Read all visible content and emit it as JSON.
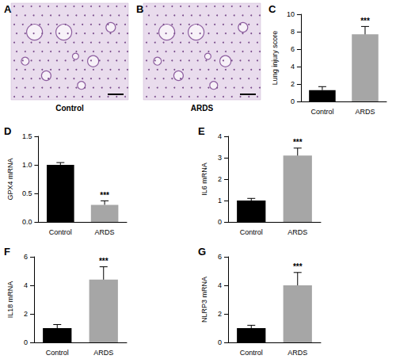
{
  "chart_data": [
    {
      "type": "image",
      "title": "A",
      "xlabel": "Control"
    },
    {
      "type": "image",
      "title": "B",
      "xlabel": "ARDS"
    },
    {
      "type": "bar",
      "title": "C",
      "ylabel": "Lung injury score",
      "categories": [
        "Control",
        "ARDS"
      ],
      "values": [
        1.3,
        7.7
      ],
      "errors": [
        0.4,
        0.9
      ],
      "colors": [
        "#000000",
        "#a6a6a6"
      ],
      "ylim": [
        0,
        10
      ],
      "yticks": [
        0,
        2,
        4,
        6,
        8,
        10
      ],
      "annotation": "***",
      "grid": false
    },
    {
      "type": "bar",
      "title": "D",
      "ylabel": "GPX4 mRNA",
      "categories": [
        "Control",
        "ARDS"
      ],
      "values": [
        1.0,
        0.3
      ],
      "errors": [
        0.04,
        0.07
      ],
      "colors": [
        "#000000",
        "#a6a6a6"
      ],
      "ylim": [
        0,
        1.5
      ],
      "yticks": [
        {
          "value": 0,
          "label": "0.0"
        },
        {
          "value": 0.5,
          "label": "0.5"
        },
        {
          "value": 1,
          "label": "1.0"
        },
        {
          "value": 1.5,
          "label": "1.5"
        }
      ],
      "annotation": "***",
      "grid": false
    },
    {
      "type": "bar",
      "title": "E",
      "ylabel": "IL6 mRNA",
      "categories": [
        "Control",
        "ARDS"
      ],
      "values": [
        1.0,
        3.1
      ],
      "errors": [
        0.1,
        0.35
      ],
      "colors": [
        "#000000",
        "#a6a6a6"
      ],
      "ylim": [
        0,
        4
      ],
      "yticks": [
        0,
        1,
        2,
        3,
        4
      ],
      "annotation": "***",
      "grid": false
    },
    {
      "type": "bar",
      "title": "F",
      "ylabel": "IL18 mRNA",
      "categories": [
        "Control",
        "ARDS"
      ],
      "values": [
        1.0,
        4.4
      ],
      "errors": [
        0.25,
        0.9
      ],
      "colors": [
        "#000000",
        "#a6a6a6"
      ],
      "ylim": [
        0,
        6
      ],
      "yticks": [
        0,
        2,
        4,
        6
      ],
      "annotation": "***",
      "grid": false
    },
    {
      "type": "bar",
      "title": "G",
      "ylabel": "NLRP3 mRNA",
      "categories": [
        "Control",
        "ARDS"
      ],
      "values": [
        1.0,
        4.0
      ],
      "errors": [
        0.2,
        0.9
      ],
      "colors": [
        "#000000",
        "#a6a6a6"
      ],
      "ylim": [
        0,
        6
      ],
      "yticks": [
        0,
        2,
        4,
        6
      ],
      "annotation": "***",
      "grid": false
    }
  ]
}
